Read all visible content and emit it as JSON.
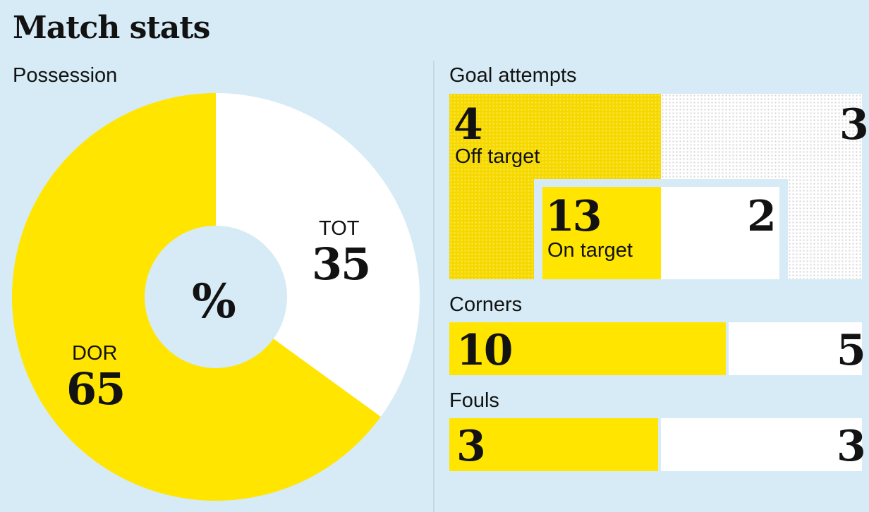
{
  "title": "Match stats",
  "colors": {
    "background": "#d6ebf5",
    "home": "#ffe500",
    "away": "#ffffff",
    "text": "#121212"
  },
  "chart_data": [
    {
      "type": "pie",
      "title": "Possession",
      "center_label": "%",
      "slices": [
        {
          "name": "DOR",
          "value": 65,
          "color": "#ffe500"
        },
        {
          "name": "TOT",
          "value": 35,
          "color": "#ffffff"
        }
      ]
    },
    {
      "type": "bar",
      "title": "Goal attempts",
      "groups": [
        {
          "label": "Off target",
          "home": 4,
          "away": 3
        },
        {
          "label": "On target",
          "home": 13,
          "away": 2
        }
      ]
    },
    {
      "type": "bar",
      "title": "Corners",
      "home": 10,
      "away": 5
    },
    {
      "type": "bar",
      "title": "Fouls",
      "home": 3,
      "away": 3
    }
  ]
}
